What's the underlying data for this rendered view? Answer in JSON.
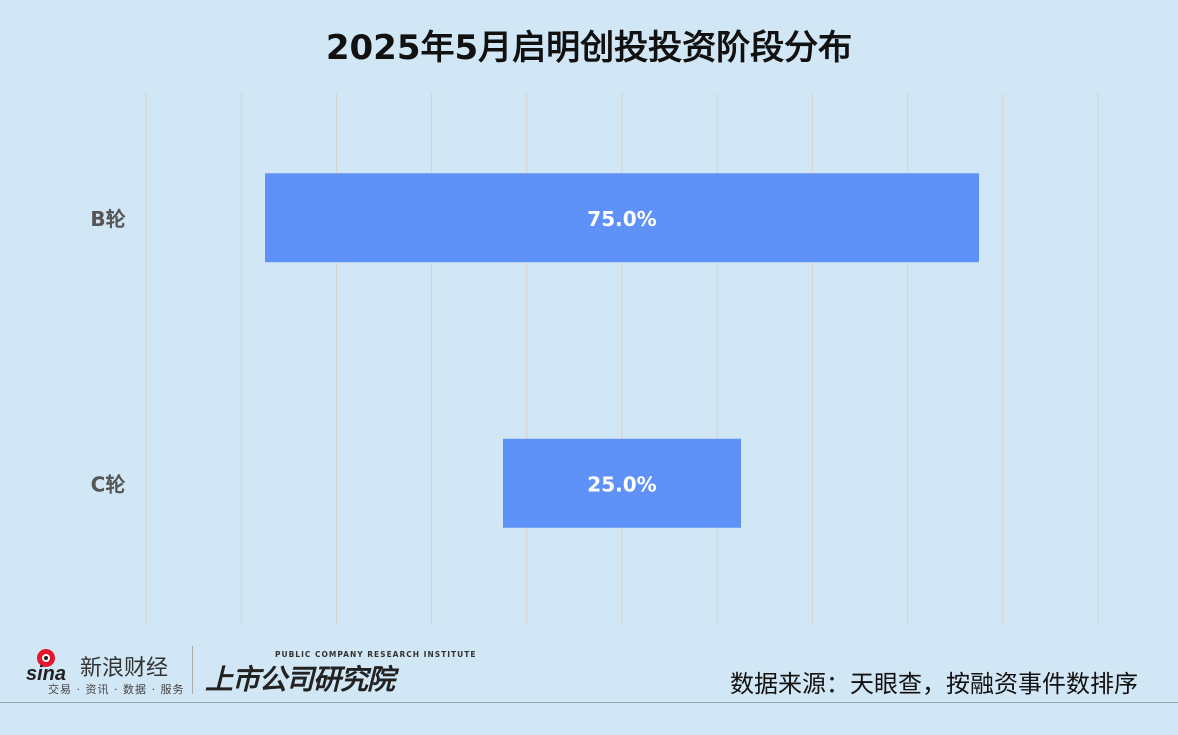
{
  "chart_data": {
    "type": "bar",
    "orientation": "horizontal-centered",
    "title": "2025年5月启明创投投资阶段分布",
    "categories": [
      "B轮",
      "C轮"
    ],
    "values": [
      75.0,
      25.0
    ],
    "data_labels": [
      "75.0%",
      "25.0%"
    ],
    "unit": "%",
    "xlim": [
      0,
      100
    ],
    "grid": true,
    "bar_color": "#5f92f8",
    "background_color": "#d2e7f5"
  },
  "footer": {
    "source": "数据来源：天眼查，按融资事件数排序",
    "sina_logo": "sina",
    "sina_name": "新浪财经",
    "sina_tagline": "交易 · 资讯 · 数据 · 服务",
    "institute_en": "PUBLIC COMPANY RESEARCH INSTITUTE",
    "institute": "上市公司研究院"
  }
}
